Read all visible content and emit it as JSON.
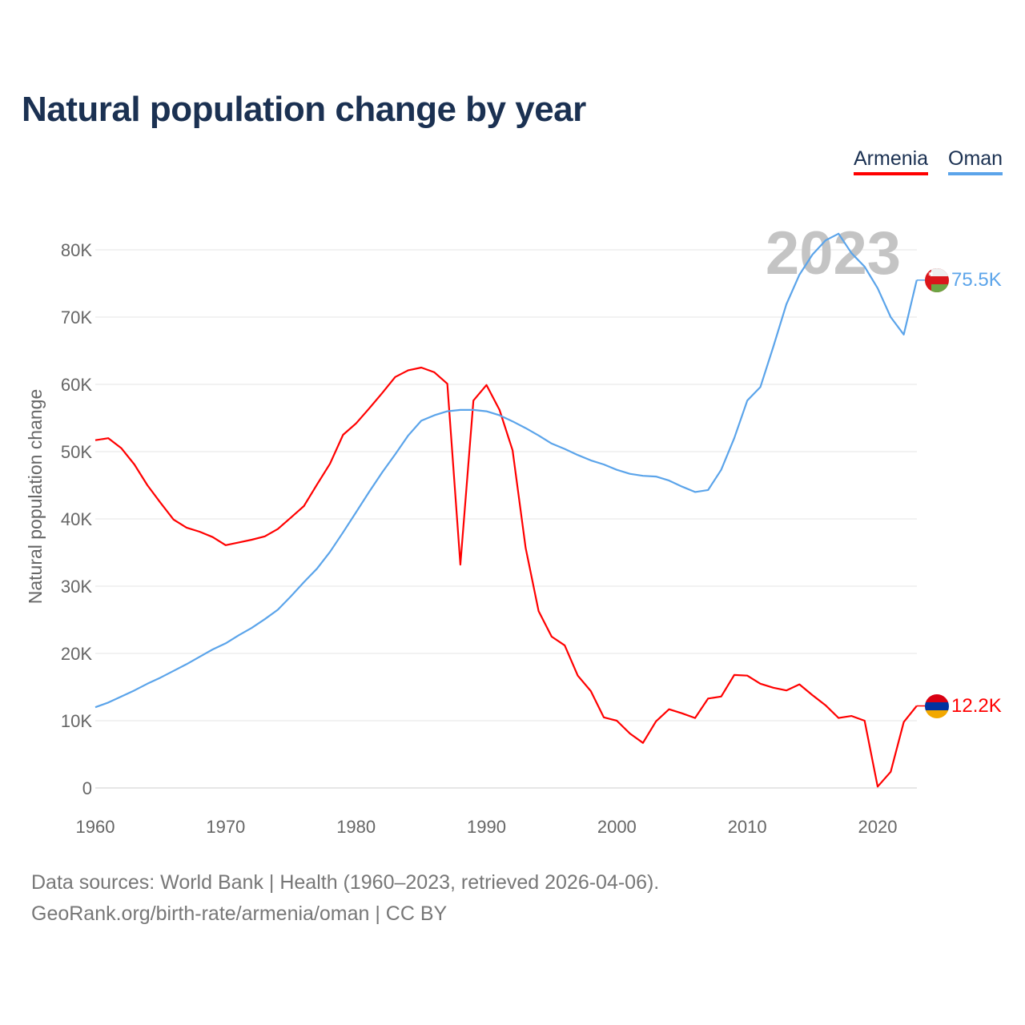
{
  "title": "Natural population change by year",
  "legend": [
    {
      "label": "Armenia",
      "color": "#ff0000"
    },
    {
      "label": "Oman",
      "color": "#5ba4ea"
    }
  ],
  "year_watermark": "2023",
  "source_line1": "Data sources: World Bank | Health (1960–2023, retrieved 2026-04-06).",
  "source_line2": "GeoRank.org/birth-rate/armenia/oman | CC BY",
  "chart_data": {
    "type": "line",
    "title": "Natural population change by year",
    "xlabel": "",
    "ylabel": "Natural population change",
    "xlim": [
      1960,
      2023
    ],
    "ylim": [
      0,
      80000
    ],
    "xticks": [
      1960,
      1970,
      1980,
      1990,
      2000,
      2010,
      2020
    ],
    "yticks": [
      {
        "v": 0,
        "label": "0"
      },
      {
        "v": 10000,
        "label": "10K"
      },
      {
        "v": 20000,
        "label": "20K"
      },
      {
        "v": 30000,
        "label": "30K"
      },
      {
        "v": 40000,
        "label": "40K"
      },
      {
        "v": 50000,
        "label": "50K"
      },
      {
        "v": 60000,
        "label": "60K"
      },
      {
        "v": 70000,
        "label": "70K"
      },
      {
        "v": 80000,
        "label": "80K"
      }
    ],
    "grid": true,
    "legend_position": "top-right",
    "x_start": 1960,
    "series": [
      {
        "name": "Armenia",
        "color": "#ff0000",
        "end_label": "12.2K",
        "flag": "armenia",
        "values": [
          51.7,
          52.0,
          50.5,
          48.1,
          45.0,
          42.4,
          39.9,
          38.7,
          38.1,
          37.3,
          36.1,
          36.5,
          36.9,
          37.4,
          38.5,
          40.2,
          41.9,
          45.1,
          48.2,
          52.5,
          54.2,
          56.4,
          58.7,
          61.1,
          62.1,
          62.5,
          61.8,
          60.1,
          33.2,
          57.6,
          59.9,
          56.2,
          50.2,
          35.7,
          26.3,
          22.5,
          21.2,
          16.7,
          14.4,
          10.5,
          10.0,
          8.1,
          6.7,
          9.9,
          11.7,
          11.1,
          10.4,
          13.3,
          13.6,
          16.8,
          16.7,
          15.5,
          14.9,
          14.5,
          15.4,
          13.8,
          12.3,
          10.4,
          10.7,
          10.0,
          0.2,
          2.4,
          9.8,
          12.2
        ]
      },
      {
        "name": "Oman",
        "color": "#5ba4ea",
        "end_label": "75.5K",
        "flag": "oman",
        "values": [
          12.0,
          12.7,
          13.6,
          14.5,
          15.5,
          16.4,
          17.4,
          18.4,
          19.5,
          20.6,
          21.5,
          22.7,
          23.8,
          25.1,
          26.5,
          28.5,
          30.6,
          32.6,
          35.1,
          38.0,
          41.0,
          44.0,
          46.9,
          49.6,
          52.4,
          54.6,
          55.4,
          56.0,
          56.2,
          56.2,
          56.0,
          55.4,
          54.5,
          53.5,
          52.4,
          51.2,
          50.4,
          49.5,
          48.7,
          48.1,
          47.3,
          46.7,
          46.4,
          46.3,
          45.7,
          44.8,
          44.0,
          44.3,
          47.3,
          52.0,
          57.6,
          59.6,
          65.6,
          71.9,
          76.3,
          79.3,
          81.4,
          82.4,
          79.5,
          77.5,
          74.3,
          70.0,
          67.4,
          75.5
        ]
      }
    ],
    "value_unit": "thousands"
  }
}
